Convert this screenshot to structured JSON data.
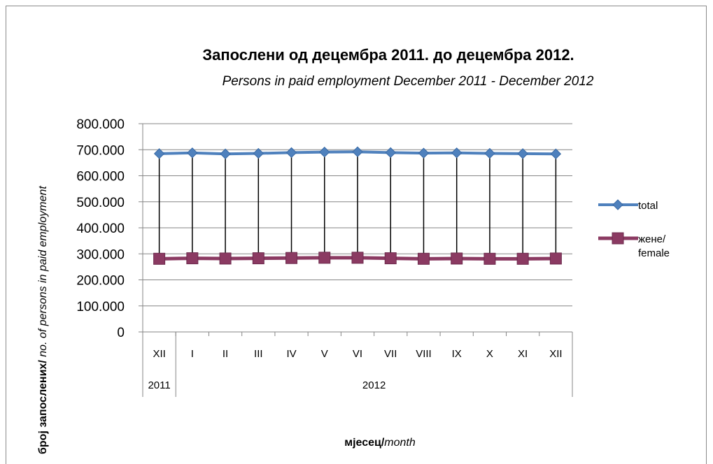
{
  "chart_data": {
    "type": "line",
    "title": "Запослени од  децембра 2011. до децембра 2012.",
    "subtitle": "Persons in paid employment  December 2011 - December 2012",
    "ylabel_bold": "број запослених/",
    "ylabel_italic": " no. of  persons  in paid employment",
    "xlabel_bold": "мјесец/",
    "xlabel_italic": "month",
    "categories": [
      "XII",
      "I",
      "II",
      "III",
      "IV",
      "V",
      "VI",
      "VII",
      "VIII",
      "IX",
      "X",
      "XI",
      "XII"
    ],
    "year_groups": [
      {
        "label": "2011",
        "span": 1
      },
      {
        "label": "2012",
        "span": 12
      }
    ],
    "yticks": [
      "0",
      "100.000",
      "200.000",
      "300.000",
      "400.000",
      "500.000",
      "600.000",
      "700.000",
      "800.000"
    ],
    "ylim": [
      0,
      800000
    ],
    "grid": true,
    "legend_position": "right",
    "drop_lines": true,
    "series": [
      {
        "name": "total",
        "color": "#4f81bd",
        "marker": "diamond",
        "values": [
          685000,
          688000,
          684000,
          686000,
          689000,
          691000,
          692000,
          689000,
          687000,
          688000,
          686000,
          685000,
          684000
        ]
      },
      {
        "name": "жене/ female",
        "legend_lines": [
          "жене/",
          "female"
        ],
        "color": "#8b3a62",
        "marker": "square",
        "values": [
          281000,
          283000,
          282000,
          283000,
          284000,
          285000,
          285000,
          283000,
          281000,
          282000,
          281000,
          281000,
          282000
        ]
      }
    ]
  }
}
